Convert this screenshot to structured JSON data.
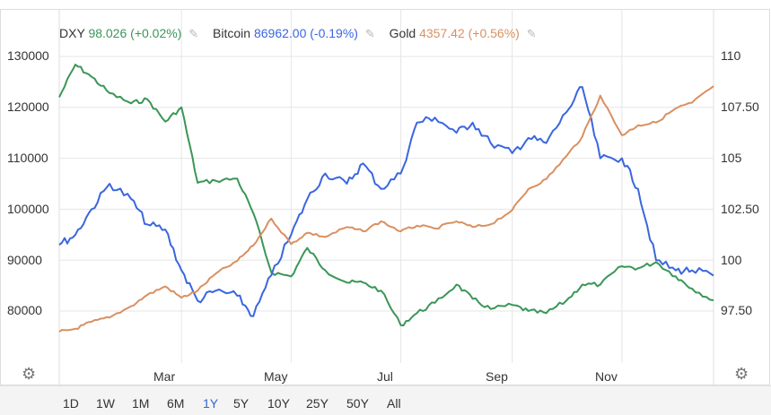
{
  "legend": {
    "dxy": {
      "name": "DXY",
      "value": "98.026",
      "change": "(+0.02%)"
    },
    "btc": {
      "name": "Bitcoin",
      "value": "86962.00",
      "change": "(-0.19%)"
    },
    "gold": {
      "name": "Gold",
      "value": "4357.42",
      "change": "(+0.56%)"
    },
    "edit_icon": "pencil-icon"
  },
  "colors": {
    "dxy": "#3a9657",
    "btc": "#3a66df",
    "gold": "#d99060",
    "grid": "#e6e6e6",
    "range_active": "#3366cc"
  },
  "left_axis_ticks": [
    "130000",
    "120000",
    "110000",
    "100000",
    "90000",
    "80000"
  ],
  "right_axis_ticks": [
    "110",
    "107.50",
    "105",
    "102.50",
    "100",
    "97.50"
  ],
  "x_ticks": [
    "Mar",
    "May",
    "Jul",
    "Sep",
    "Nov"
  ],
  "range_buttons": [
    "1D",
    "1W",
    "1M",
    "6M",
    "1Y",
    "5Y",
    "10Y",
    "25Y",
    "50Y",
    "All"
  ],
  "range_active": "1Y",
  "settings_icon": "gear-icon",
  "chart_data": {
    "type": "line",
    "x_range": [
      "2024-12-23",
      "2025-12-22"
    ],
    "y_left": {
      "range": [
        74000,
        135000
      ],
      "ticks": [
        80000,
        90000,
        100000,
        110000,
        120000,
        130000
      ]
    },
    "y_right": {
      "range": [
        95.15,
        110.9
      ],
      "ticks": [
        97.5,
        100,
        102.5,
        105,
        107.5,
        110
      ]
    },
    "series": [
      {
        "name": "DXY",
        "axis": "right",
        "x": [
          "2024-12-23",
          "2025-01-01",
          "2025-01-10",
          "2025-01-20",
          "2025-02-01",
          "2025-02-10",
          "2025-02-20",
          "2025-03-01",
          "2025-03-10",
          "2025-03-20",
          "2025-04-01",
          "2025-04-10",
          "2025-04-20",
          "2025-05-01",
          "2025-05-10",
          "2025-05-20",
          "2025-06-01",
          "2025-06-10",
          "2025-06-20",
          "2025-07-01",
          "2025-07-10",
          "2025-07-20",
          "2025-08-01",
          "2025-08-10",
          "2025-08-20",
          "2025-09-01",
          "2025-09-10",
          "2025-09-20",
          "2025-10-01",
          "2025-10-10",
          "2025-10-20",
          "2025-11-01",
          "2025-11-10",
          "2025-11-20",
          "2025-12-01",
          "2025-12-10",
          "2025-12-22"
        ],
        "values": [
          108.0,
          109.6,
          109.0,
          108.2,
          107.7,
          107.9,
          106.8,
          107.5,
          103.8,
          103.9,
          104.0,
          102.3,
          99.4,
          99.2,
          100.6,
          99.5,
          98.9,
          98.9,
          98.5,
          96.8,
          97.4,
          97.9,
          98.8,
          98.1,
          97.6,
          97.8,
          97.5,
          97.4,
          98.0,
          98.8,
          98.8,
          99.7,
          99.6,
          99.9,
          99.2,
          98.6,
          98.03
        ]
      },
      {
        "name": "Bitcoin",
        "axis": "left",
        "x": [
          "2024-12-23",
          "2025-01-01",
          "2025-01-10",
          "2025-01-20",
          "2025-02-01",
          "2025-02-10",
          "2025-02-20",
          "2025-03-01",
          "2025-03-10",
          "2025-03-20",
          "2025-04-01",
          "2025-04-10",
          "2025-04-20",
          "2025-05-01",
          "2025-05-10",
          "2025-05-20",
          "2025-06-01",
          "2025-06-10",
          "2025-06-20",
          "2025-07-01",
          "2025-07-10",
          "2025-07-20",
          "2025-08-01",
          "2025-08-10",
          "2025-08-20",
          "2025-09-01",
          "2025-09-10",
          "2025-09-20",
          "2025-10-01",
          "2025-10-10",
          "2025-10-20",
          "2025-11-01",
          "2025-11-10",
          "2025-11-20",
          "2025-12-01",
          "2025-12-10",
          "2025-12-22"
        ],
        "values": [
          93000,
          95000,
          100000,
          105000,
          102000,
          97000,
          96000,
          88000,
          82000,
          84000,
          83000,
          79000,
          87000,
          95000,
          102000,
          107000,
          105000,
          109000,
          104000,
          107000,
          117000,
          118000,
          115000,
          117000,
          113000,
          111000,
          114000,
          113000,
          119000,
          124000,
          110000,
          110000,
          104000,
          90000,
          88000,
          88000,
          86962
        ]
      },
      {
        "name": "Gold",
        "axis": "right",
        "x": [
          "2024-12-23",
          "2025-01-01",
          "2025-01-10",
          "2025-01-20",
          "2025-02-01",
          "2025-02-10",
          "2025-02-20",
          "2025-03-01",
          "2025-03-10",
          "2025-03-20",
          "2025-04-01",
          "2025-04-10",
          "2025-04-20",
          "2025-05-01",
          "2025-05-10",
          "2025-05-20",
          "2025-06-01",
          "2025-06-10",
          "2025-06-20",
          "2025-07-01",
          "2025-07-10",
          "2025-07-20",
          "2025-08-01",
          "2025-08-10",
          "2025-08-20",
          "2025-09-01",
          "2025-09-10",
          "2025-09-20",
          "2025-10-01",
          "2025-10-10",
          "2025-10-20",
          "2025-11-01",
          "2025-11-10",
          "2025-11-20",
          "2025-12-01",
          "2025-12-10",
          "2025-12-22"
        ],
        "values": [
          2620,
          2640,
          2690,
          2720,
          2800,
          2880,
          2940,
          2860,
          2910,
          3030,
          3120,
          3230,
          3420,
          3240,
          3320,
          3290,
          3360,
          3330,
          3400,
          3330,
          3370,
          3350,
          3400,
          3360,
          3380,
          3480,
          3630,
          3700,
          3860,
          4000,
          4290,
          4010,
          4080,
          4100,
          4200,
          4240,
          4357.42
        ]
      }
    ],
    "gold_note_axis_scale": "Gold plotted on its own scale (not labeled in original)"
  }
}
